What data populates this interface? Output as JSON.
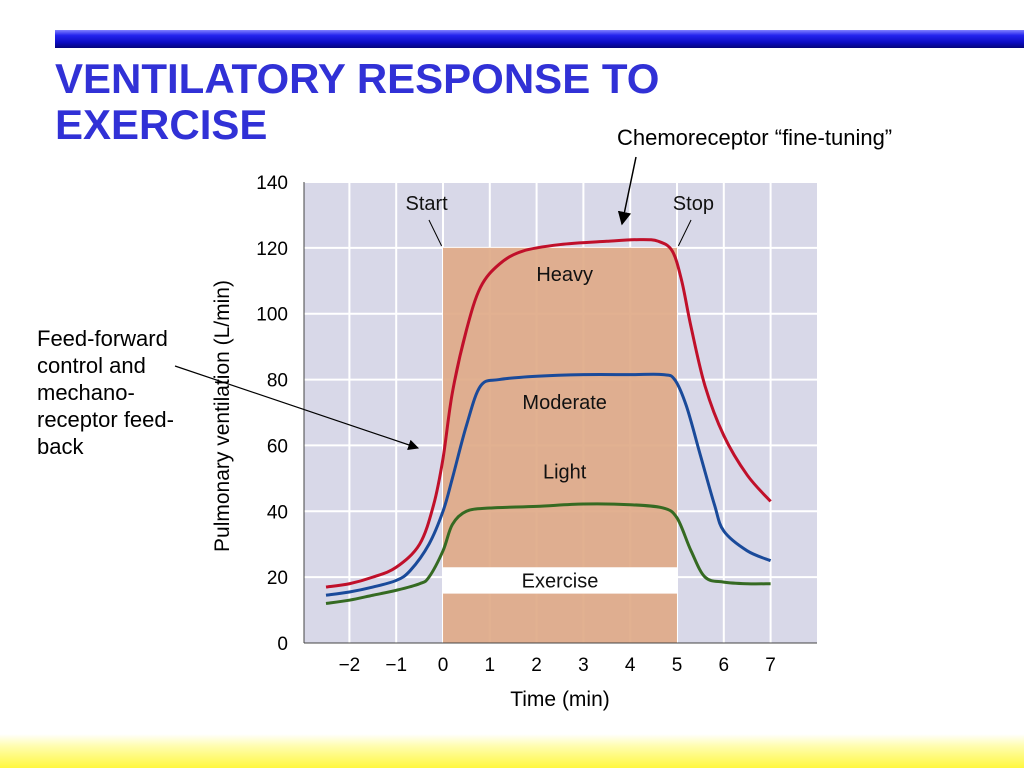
{
  "slide": {
    "title_line1": "VENTILATORY RESPONSE TO",
    "title_line2": "EXERCISE",
    "callout_top": "Chemoreceptor “fine-tuning”",
    "callout_left": "Feed-forward control and mechano-receptor feed-back",
    "colors": {
      "title": "#3131d6",
      "top_bar": "#1414d0",
      "bottom_bar": "#fff840",
      "plot_bg": "#d8d8e8",
      "exercise_band": "#e0aa88",
      "heavy": "#c0102a",
      "moderate": "#1a4a9a",
      "light": "#356a22"
    }
  },
  "chart_data": {
    "type": "line",
    "title": "",
    "xlabel": "Time (min)",
    "ylabel": "Pulmonary ventilation (L/min)",
    "xlim": [
      -2.5,
      8
    ],
    "ylim": [
      0,
      140
    ],
    "x_ticks": [
      -2,
      -1,
      0,
      1,
      2,
      3,
      4,
      5,
      6,
      7
    ],
    "x_tick_labels": [
      "−2",
      "−1",
      "0",
      "1",
      "2",
      "3",
      "4",
      "5",
      "6",
      "7"
    ],
    "y_ticks": [
      0,
      20,
      40,
      60,
      80,
      100,
      120,
      140
    ],
    "y_tick_labels": [
      "0",
      "20",
      "40",
      "60",
      "80",
      "100",
      "120",
      "140"
    ],
    "grid": true,
    "exercise_period": {
      "start": 0,
      "end": 5,
      "label": "Exercise",
      "label_band": [
        15,
        23
      ]
    },
    "annotations": {
      "start": "Start",
      "stop": "Stop"
    },
    "series": [
      {
        "name": "Heavy",
        "color": "#c0102a",
        "label_pos": [
          2.6,
          110
        ],
        "points": [
          [
            -2.5,
            17
          ],
          [
            -2,
            18
          ],
          [
            -1.5,
            20
          ],
          [
            -1,
            23
          ],
          [
            -0.5,
            30
          ],
          [
            -0.2,
            42
          ],
          [
            0,
            56
          ],
          [
            0.2,
            76
          ],
          [
            0.5,
            95
          ],
          [
            0.8,
            108
          ],
          [
            1.2,
            115
          ],
          [
            1.7,
            119
          ],
          [
            2.5,
            121
          ],
          [
            3.5,
            122
          ],
          [
            4.2,
            122.5
          ],
          [
            4.6,
            122
          ],
          [
            4.9,
            119
          ],
          [
            5.1,
            110
          ],
          [
            5.3,
            96
          ],
          [
            5.6,
            78
          ],
          [
            6,
            63
          ],
          [
            6.5,
            51
          ],
          [
            7,
            43
          ]
        ]
      },
      {
        "name": "Moderate",
        "color": "#1a4a9a",
        "label_pos": [
          2.6,
          71
        ],
        "points": [
          [
            -2.5,
            14.5
          ],
          [
            -2,
            15.5
          ],
          [
            -1.5,
            17
          ],
          [
            -1,
            19
          ],
          [
            -0.7,
            22
          ],
          [
            -0.3,
            30
          ],
          [
            0,
            40
          ],
          [
            0.2,
            50
          ],
          [
            0.5,
            66
          ],
          [
            0.8,
            78
          ],
          [
            1.2,
            80
          ],
          [
            2,
            81
          ],
          [
            3,
            81.5
          ],
          [
            4,
            81.5
          ],
          [
            4.7,
            81.5
          ],
          [
            4.95,
            80
          ],
          [
            5.2,
            72
          ],
          [
            5.5,
            57
          ],
          [
            5.8,
            42
          ],
          [
            6,
            34
          ],
          [
            6.5,
            28
          ],
          [
            7,
            25
          ]
        ]
      },
      {
        "name": "Light",
        "color": "#356a22",
        "label_pos": [
          2.6,
          50
        ],
        "points": [
          [
            -2.5,
            12
          ],
          [
            -2,
            13
          ],
          [
            -1.5,
            14.5
          ],
          [
            -1,
            16
          ],
          [
            -0.5,
            18
          ],
          [
            -0.3,
            20
          ],
          [
            0,
            28
          ],
          [
            0.2,
            36
          ],
          [
            0.5,
            40
          ],
          [
            1,
            41
          ],
          [
            2,
            41.5
          ],
          [
            3,
            42.2
          ],
          [
            4,
            42
          ],
          [
            4.7,
            41
          ],
          [
            5,
            38
          ],
          [
            5.3,
            28
          ],
          [
            5.6,
            20
          ],
          [
            6,
            18.5
          ],
          [
            6.5,
            18
          ],
          [
            7,
            18
          ]
        ]
      }
    ]
  }
}
